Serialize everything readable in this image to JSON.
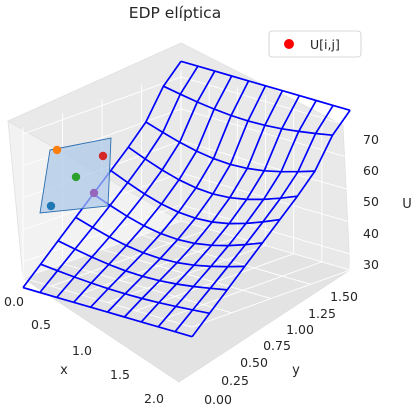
{
  "chart_data": {
    "type": "surface3d",
    "title": "EDP elíptica",
    "xlabel": "x",
    "ylabel": "y",
    "zlabel": "U",
    "xlim": [
      0,
      2
    ],
    "ylim": [
      0,
      1.5
    ],
    "zlim": [
      25,
      72
    ],
    "x_ticks": [
      "0.0",
      "0.5",
      "1.0",
      "1.5",
      "2.0"
    ],
    "y_ticks": [
      "0.00",
      "0.25",
      "0.50",
      "0.75",
      "1.00",
      "1.25",
      "1.50"
    ],
    "z_ticks": [
      "30",
      "40",
      "50",
      "60",
      "70"
    ],
    "grid": true,
    "legend": {
      "position": "top-right",
      "label": "U[i,j]",
      "color": "#ff0000"
    },
    "wire_color": "#0000ff",
    "highlight_patch_color": "#aac8e8",
    "point_colors": [
      "#ff7f0e",
      "#1f77b4",
      "#2ca02c",
      "#d62728",
      "#9467bd"
    ]
  }
}
